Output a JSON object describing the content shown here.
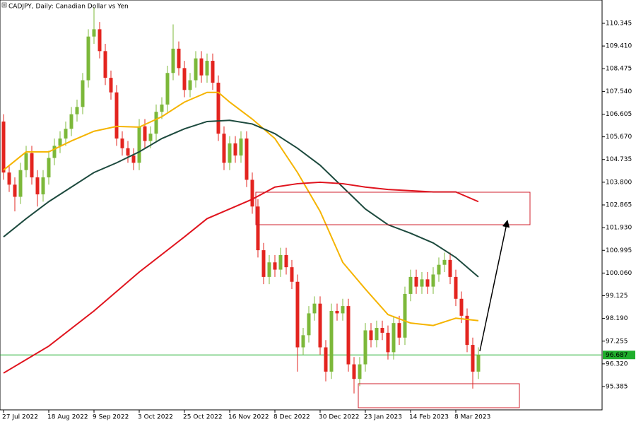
{
  "chart_data": {
    "type": "candlestick",
    "title": "CADJPY, Daily:  Canadian Dollar vs Yen",
    "categories": [
      "27 Jul 2022",
      null,
      null,
      null,
      null,
      null,
      null,
      null,
      "18 Aug 2022",
      null,
      null,
      null,
      null,
      null,
      null,
      null,
      "9 Sep 2022",
      null,
      null,
      null,
      null,
      null,
      null,
      null,
      "3 Oct 2022",
      null,
      null,
      null,
      null,
      null,
      null,
      null,
      "25 Oct 2022",
      null,
      null,
      null,
      null,
      null,
      null,
      null,
      "16 Nov 2022",
      null,
      null,
      null,
      null,
      null,
      null,
      null,
      "8 Dec 2022",
      null,
      null,
      null,
      null,
      null,
      null,
      null,
      "30 Dec 2022",
      null,
      null,
      null,
      null,
      null,
      null,
      null,
      "23 Jan 2023",
      null,
      null,
      null,
      null,
      null,
      null,
      null,
      "14 Feb 2023",
      null,
      null,
      null,
      null,
      null,
      null,
      null,
      "8 Mar 2023",
      null,
      null,
      null,
      null
    ],
    "open": [
      106.3,
      104.2,
      103.7,
      103.2,
      104.3,
      105.0,
      104.0,
      103.3,
      104.0,
      104.8,
      105.3,
      105.6,
      106.0,
      106.6,
      106.9,
      108.0,
      109.8,
      110.1,
      109.2,
      108.1,
      107.5,
      105.6,
      105.2,
      104.9,
      104.6,
      106.1,
      105.5,
      105.8,
      106.7,
      107.0,
      108.3,
      109.3,
      108.5,
      107.6,
      108.0,
      108.9,
      108.2,
      108.8,
      107.9,
      105.8,
      104.6,
      105.4,
      104.9,
      105.6,
      103.9,
      102.8,
      101.0,
      99.9,
      100.5,
      100.2,
      100.8,
      100.3,
      99.7,
      97.0,
      97.5,
      98.4,
      98.8,
      97.0,
      96.0,
      98.5,
      98.4,
      98.7,
      96.3,
      95.7,
      96.3,
      97.7,
      97.3,
      97.8,
      97.6,
      96.8,
      98.0,
      97.4,
      99.2,
      99.9,
      99.5,
      99.8,
      99.5,
      100.0,
      100.4,
      100.6,
      99.9,
      99.0,
      98.3,
      97.1,
      96.0
    ],
    "high": [
      106.6,
      104.5,
      104.0,
      104.6,
      105.3,
      105.3,
      104.3,
      104.3,
      105.1,
      105.6,
      105.9,
      106.3,
      106.9,
      107.2,
      108.3,
      110.1,
      111.0,
      110.4,
      109.5,
      108.4,
      107.8,
      105.9,
      105.5,
      105.2,
      106.4,
      106.4,
      106.1,
      107.0,
      107.3,
      108.6,
      110.3,
      109.6,
      108.8,
      108.3,
      109.2,
      109.2,
      109.1,
      109.1,
      108.2,
      106.1,
      105.7,
      105.7,
      105.9,
      105.9,
      104.2,
      103.1,
      101.3,
      100.8,
      100.8,
      101.1,
      101.1,
      100.6,
      100.0,
      97.8,
      98.7,
      99.1,
      99.1,
      97.3,
      98.8,
      98.8,
      99.0,
      99.0,
      96.6,
      96.6,
      98.0,
      98.0,
      98.1,
      98.1,
      97.9,
      98.3,
      98.3,
      99.5,
      100.2,
      100.2,
      100.1,
      100.1,
      100.3,
      100.7,
      100.9,
      100.9,
      100.2,
      99.3,
      98.6,
      97.4,
      97.0
    ],
    "low": [
      103.9,
      103.4,
      102.6,
      102.9,
      104.0,
      103.7,
      102.8,
      103.0,
      103.7,
      104.5,
      105.0,
      105.3,
      105.7,
      106.3,
      106.6,
      107.7,
      109.5,
      108.9,
      107.8,
      107.2,
      105.3,
      104.9,
      104.6,
      104.3,
      104.3,
      105.2,
      105.2,
      105.5,
      106.4,
      106.7,
      108.0,
      108.2,
      107.3,
      107.3,
      107.7,
      107.9,
      107.9,
      107.6,
      105.5,
      104.3,
      104.3,
      104.6,
      104.6,
      103.6,
      102.5,
      100.7,
      99.6,
      99.6,
      99.9,
      99.9,
      100.0,
      99.4,
      96.0,
      96.7,
      97.2,
      98.1,
      96.7,
      95.6,
      95.7,
      98.1,
      98.1,
      96.0,
      95.1,
      95.4,
      96.0,
      97.0,
      97.0,
      97.3,
      96.5,
      96.5,
      97.1,
      97.1,
      98.9,
      99.2,
      99.2,
      99.2,
      99.2,
      99.7,
      100.1,
      99.6,
      98.7,
      98.0,
      96.8,
      95.3,
      95.7
    ],
    "close": [
      104.2,
      103.7,
      103.2,
      104.3,
      105.0,
      104.0,
      103.3,
      104.0,
      104.8,
      105.3,
      105.6,
      106.0,
      106.6,
      106.9,
      108.0,
      109.8,
      110.1,
      109.2,
      108.1,
      107.5,
      105.6,
      105.2,
      104.9,
      104.6,
      106.1,
      105.5,
      105.8,
      106.7,
      107.0,
      108.3,
      109.3,
      108.5,
      107.6,
      108.0,
      108.9,
      108.2,
      108.8,
      107.9,
      105.8,
      104.6,
      105.4,
      104.9,
      105.6,
      103.9,
      102.8,
      101.0,
      99.9,
      100.5,
      100.2,
      100.8,
      100.3,
      99.7,
      97.0,
      97.5,
      98.4,
      98.8,
      97.0,
      96.0,
      98.5,
      98.4,
      98.7,
      96.3,
      95.7,
      96.3,
      97.7,
      97.3,
      97.8,
      97.6,
      96.8,
      98.0,
      97.4,
      99.2,
      99.9,
      99.5,
      99.8,
      99.5,
      100.0,
      100.4,
      100.6,
      99.9,
      99.0,
      98.3,
      97.1,
      96.0,
      96.687
    ],
    "up_color": "#7cb83a",
    "down_color": "#e3241f",
    "series": [
      {
        "color": "#f5b400",
        "x": [
          0,
          4,
          8,
          12,
          16,
          20,
          24,
          28,
          32,
          36,
          38,
          40,
          44,
          48,
          52,
          56,
          60,
          64,
          68,
          72,
          76,
          80,
          84
        ],
        "values": [
          104.3,
          105.05,
          105.05,
          105.5,
          105.9,
          106.1,
          106.07,
          106.5,
          107.1,
          107.5,
          107.5,
          107.1,
          106.4,
          105.6,
          104.2,
          102.6,
          100.5,
          99.4,
          98.35,
          98.0,
          97.9,
          98.2,
          98.1
        ]
      },
      {
        "color": "#1d4a3e",
        "x": [
          0,
          4,
          8,
          12,
          16,
          20,
          24,
          28,
          32,
          36,
          40,
          44,
          48,
          52,
          56,
          60,
          64,
          68,
          72,
          76,
          80,
          84
        ],
        "values": [
          101.55,
          102.3,
          103.0,
          103.6,
          104.2,
          104.6,
          105.05,
          105.6,
          106.0,
          106.3,
          106.35,
          106.2,
          105.8,
          105.2,
          104.5,
          103.6,
          102.7,
          102.05,
          101.7,
          101.3,
          100.7,
          99.9
        ]
      },
      {
        "color": "#e0141e",
        "x": [
          0,
          8,
          16,
          24,
          32,
          36,
          40,
          44,
          48,
          52,
          56,
          60,
          64,
          68,
          72,
          76,
          80,
          84
        ],
        "values": [
          95.94,
          97.05,
          98.5,
          100.1,
          101.55,
          102.3,
          102.7,
          103.1,
          103.6,
          103.74,
          103.8,
          103.74,
          103.6,
          103.5,
          103.45,
          103.4,
          103.4,
          103.0
        ]
      }
    ],
    "current_price": 96.687,
    "current_price_color": "#1fae2c",
    "ylim": [
      94.425,
      111.305
    ],
    "yticks": [
      110.345,
      {
        "value": 109.41,
        "label": "109.410"
      },
      108.475,
      {
        "value": 107.54,
        "label": "107.540"
      },
      106.605,
      {
        "value": 105.67,
        "label": "105.670"
      },
      104.735,
      {
        "value": 103.8,
        "label": "103.800"
      },
      102.865,
      {
        "value": 101.93,
        "label": "101.930"
      },
      100.995,
      {
        "value": 100.06,
        "label": "100.060"
      },
      99.125,
      {
        "value": 98.19,
        "label": "98.190"
      },
      97.255,
      {
        "value": 96.32,
        "label": "96.320"
      },
      95.385
    ]
  }
}
